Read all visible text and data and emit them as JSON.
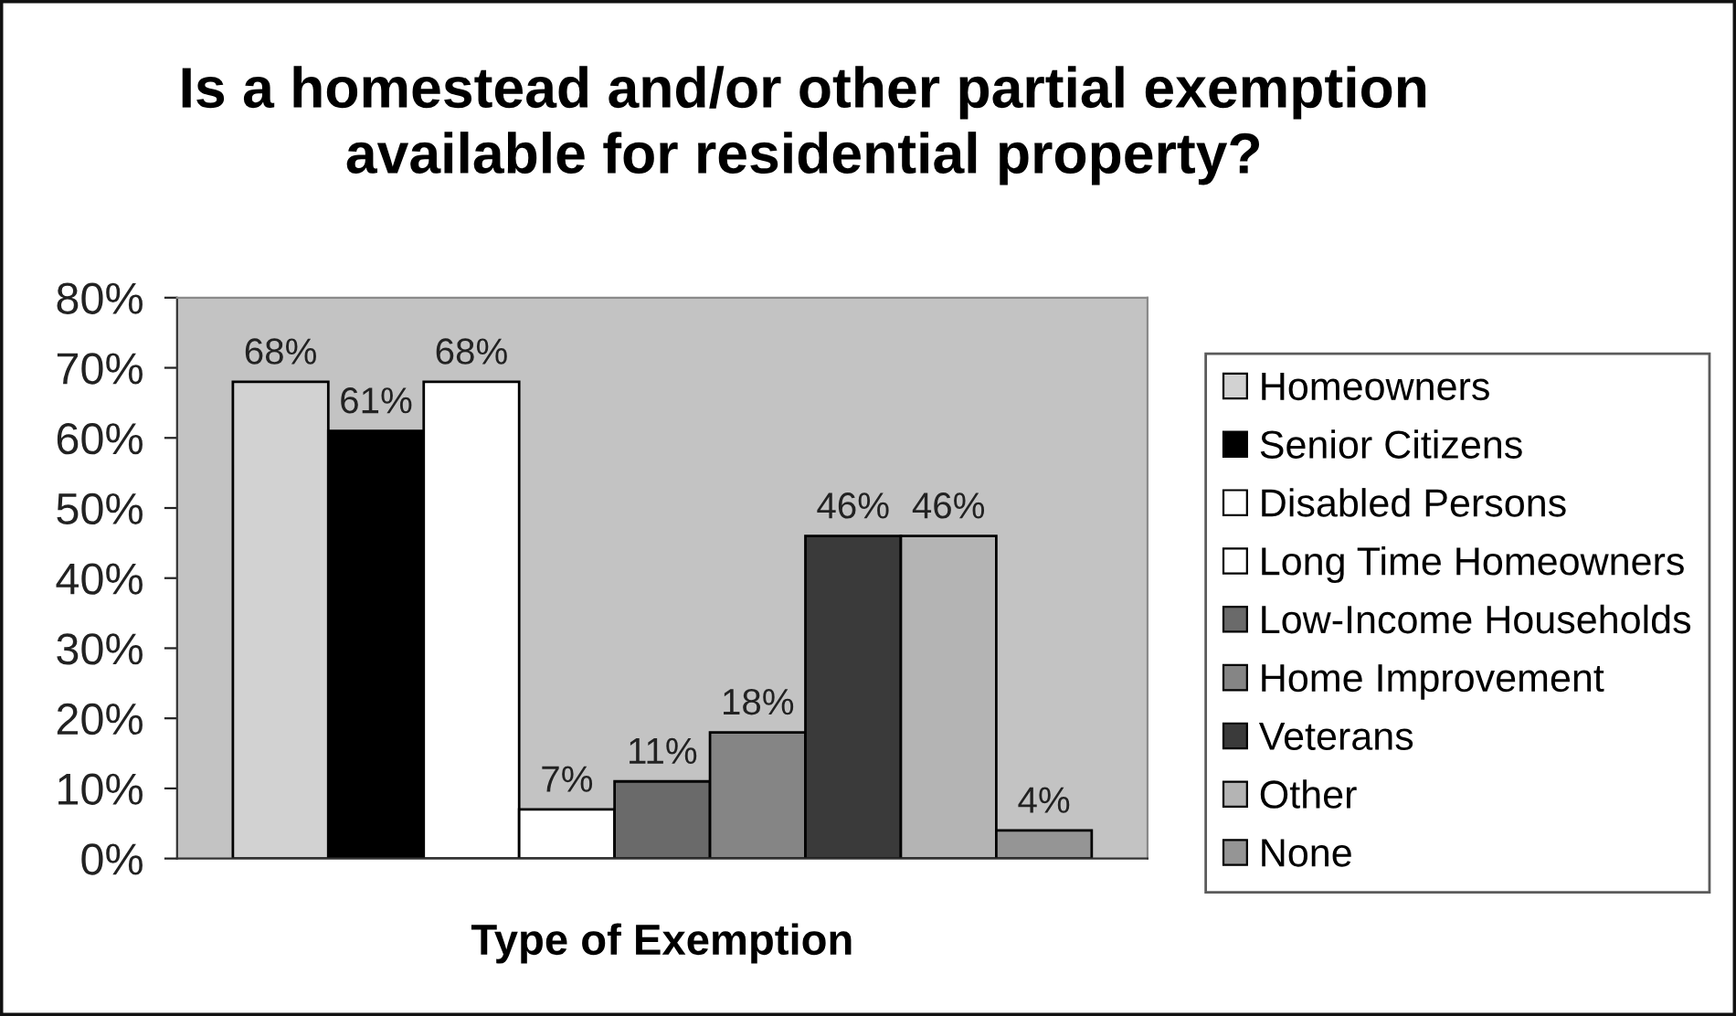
{
  "chart_data": {
    "type": "bar",
    "title": "Is a homestead and/or other partial exemption\navailable for residential property?",
    "xlabel": "Type of Exemption",
    "categories": [
      null
    ],
    "series": [
      {
        "name": "Homeowners",
        "color": "#d2d2d2",
        "values": [
          68
        ],
        "value_labels": [
          "68%"
        ]
      },
      {
        "name": "Senior Citizens",
        "color": "#000000",
        "values": [
          61
        ],
        "value_labels": [
          "61%"
        ]
      },
      {
        "name": "Disabled Persons",
        "color": "#ffffff",
        "values": [
          68
        ],
        "value_labels": [
          "68%"
        ]
      },
      {
        "name": "Long Time Homeowners",
        "color": "#ffffff",
        "values": [
          7
        ],
        "value_labels": [
          "7%"
        ]
      },
      {
        "name": "Low-Income Households",
        "color": "#6a6a6a",
        "values": [
          11
        ],
        "value_labels": [
          "11%"
        ]
      },
      {
        "name": "Home Improvement",
        "color": "#858585",
        "values": [
          18
        ],
        "value_labels": [
          "18%"
        ]
      },
      {
        "name": "Veterans",
        "color": "#3a3a3a",
        "values": [
          46
        ],
        "value_labels": [
          "46%"
        ]
      },
      {
        "name": "Other",
        "color": "#b4b4b4",
        "values": [
          46
        ],
        "value_labels": [
          "46%"
        ]
      },
      {
        "name": "None",
        "color": "#959595",
        "values": [
          4
        ],
        "value_labels": [
          "4%"
        ]
      }
    ],
    "ylim": [
      0,
      80
    ],
    "yticks": [
      {
        "value": 0,
        "label": "0%"
      },
      {
        "value": 10,
        "label": "10%"
      },
      {
        "value": 20,
        "label": "20%"
      },
      {
        "value": 30,
        "label": "30%"
      },
      {
        "value": 40,
        "label": "40%"
      },
      {
        "value": 50,
        "label": "50%"
      },
      {
        "value": 60,
        "label": "60%"
      },
      {
        "value": 70,
        "label": "70%"
      },
      {
        "value": 80,
        "label": "80%"
      }
    ],
    "grid": false,
    "legend": "right",
    "tick_labels": "y"
  }
}
